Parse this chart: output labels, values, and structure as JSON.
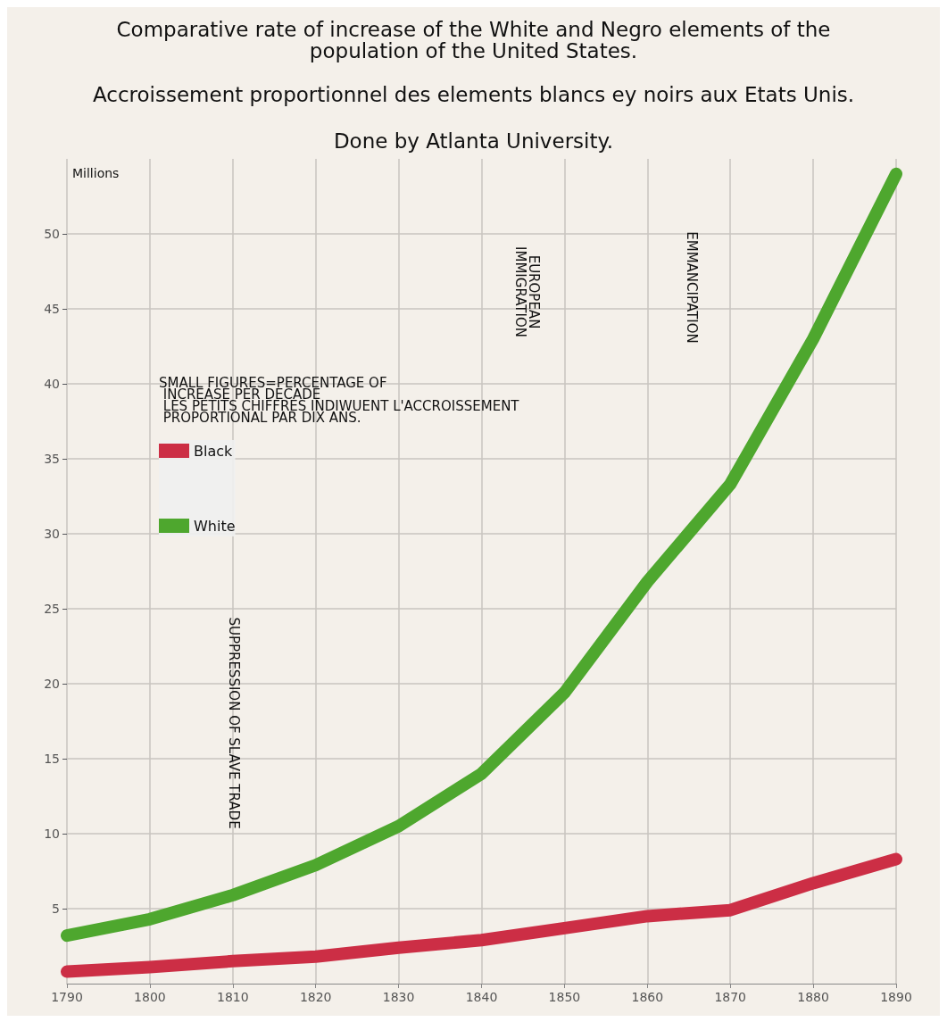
{
  "chart_data": {
    "type": "line",
    "title": "Comparative rate of increase of the White and Negro elements of the\npopulation of the United States.",
    "subtitle": "Accroissement proportionnel des elements blancs ey noirs aux Etats Unis.\n\nDone by Atlanta University.",
    "ylabel": "Millions",
    "legend_title": "SMALL FIGURES=PERCENTAGE OF\n INCREASE PER DECADE\n LES PETITS CHIFFRES INDIWUENT L'ACCROISSEMENT\n PROPORTIONAL PAR DIX ANS.",
    "x": [
      1790,
      1800,
      1810,
      1820,
      1830,
      1840,
      1850,
      1860,
      1870,
      1880,
      1890
    ],
    "series": [
      {
        "name": "Black",
        "color": "#cc2e45",
        "values": [
          0.8,
          1.1,
          1.5,
          1.8,
          2.4,
          2.9,
          3.7,
          4.5,
          4.9,
          6.7,
          8.3
        ]
      },
      {
        "name": "White",
        "color": "#4ea72e",
        "values": [
          3.2,
          4.3,
          5.9,
          7.9,
          10.5,
          14.0,
          19.4,
          26.8,
          33.3,
          43.0,
          54.0
        ]
      }
    ],
    "xlim": [
      1790,
      1890
    ],
    "xticks": [
      1790,
      1800,
      1810,
      1820,
      1830,
      1840,
      1850,
      1860,
      1870,
      1880,
      1890
    ],
    "ylim": [
      0,
      55
    ],
    "yticks": [
      5,
      10,
      15,
      20,
      25,
      30,
      35,
      40,
      45,
      50
    ],
    "annotations": [
      "SUPPRESSION OF SLAVE TRADE",
      "EUROPEAN\nIMMIGRATION",
      "EMMANCIPATION"
    ],
    "grid": true,
    "legend": "left",
    "line_style": "solid"
  }
}
